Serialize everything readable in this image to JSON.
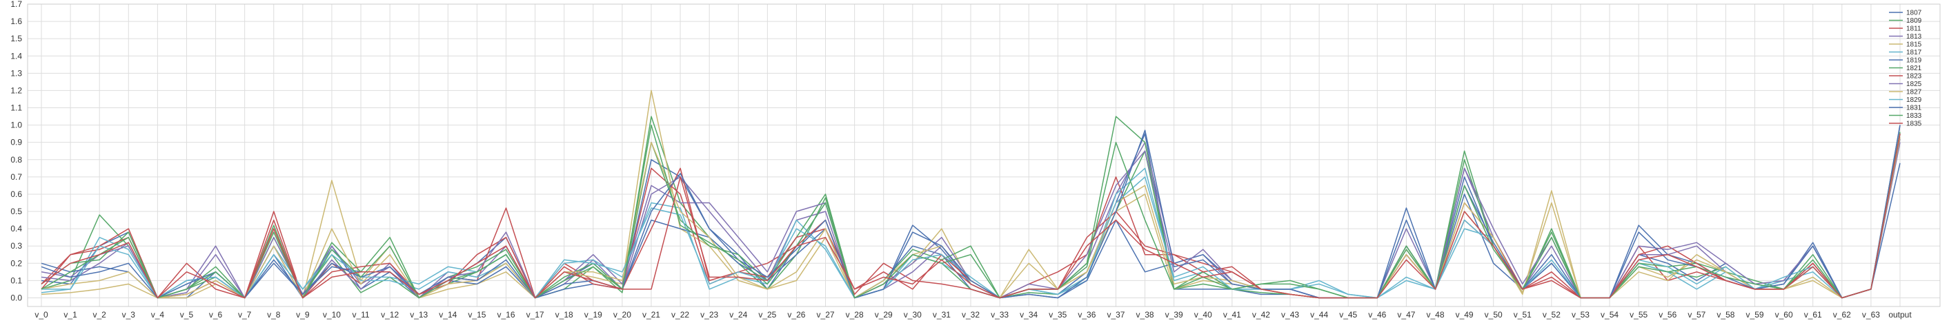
{
  "chart_data": {
    "type": "line",
    "title": "",
    "xlabel": "",
    "ylabel": "",
    "ylim": [
      -0.05,
      1.7
    ],
    "yticks": [
      "0.0",
      "0.1",
      "0.2",
      "0.3",
      "0.4",
      "0.5",
      "0.6",
      "0.7",
      "0.8",
      "0.9",
      "1.0",
      "1.1",
      "1.2",
      "1.3",
      "1.4",
      "1.5",
      "1.6",
      "1.7"
    ],
    "grid": true,
    "legend_position": "top-right",
    "categories": [
      "v_0",
      "v_1",
      "v_2",
      "v_3",
      "v_4",
      "v_5",
      "v_6",
      "v_7",
      "v_8",
      "v_9",
      "v_10",
      "v_11",
      "v_12",
      "v_13",
      "v_14",
      "v_15",
      "v_16",
      "v_17",
      "v_18",
      "v_19",
      "v_20",
      "v_21",
      "v_22",
      "v_23",
      "v_24",
      "v_25",
      "v_26",
      "v_27",
      "v_28",
      "v_29",
      "v_30",
      "v_31",
      "v_32",
      "v_33",
      "v_34",
      "v_35",
      "v_36",
      "v_37",
      "v_38",
      "v_39",
      "v_40",
      "v_41",
      "v_42",
      "v_43",
      "v_44",
      "v_45",
      "v_46",
      "v_47",
      "v_48",
      "v_49",
      "v_50",
      "v_51",
      "v_52",
      "v_53",
      "v_54",
      "v_55",
      "v_56",
      "v_57",
      "v_58",
      "v_59",
      "v_60",
      "v_61",
      "v_62",
      "v_63",
      "output"
    ],
    "series": [
      {
        "name": "1807",
        "color": "#4c72b0",
        "values": [
          0.1,
          0.08,
          0.3,
          0.38,
          0.0,
          0.0,
          0.15,
          0.0,
          0.25,
          0.0,
          0.3,
          0.05,
          0.15,
          0.0,
          0.1,
          0.2,
          0.35,
          0.0,
          0.1,
          0.2,
          0.05,
          0.8,
          0.7,
          0.4,
          0.25,
          0.05,
          0.3,
          0.55,
          0.0,
          0.1,
          0.3,
          0.25,
          0.05,
          0.0,
          0.05,
          0.02,
          0.15,
          0.55,
          0.95,
          0.05,
          0.05,
          0.05,
          0.02,
          0.02,
          0.0,
          0.0,
          0.0,
          0.25,
          0.05,
          0.6,
          0.2,
          0.05,
          0.2,
          0.0,
          0.0,
          0.25,
          0.2,
          0.1,
          0.2,
          0.08,
          0.05,
          0.2,
          0.0,
          0.05,
          1.0
        ]
      },
      {
        "name": "1809",
        "color": "#55a868",
        "values": [
          0.05,
          0.1,
          0.48,
          0.3,
          0.0,
          0.05,
          0.12,
          0.0,
          0.35,
          0.02,
          0.25,
          0.03,
          0.12,
          0.0,
          0.08,
          0.15,
          0.25,
          0.0,
          0.05,
          0.18,
          0.03,
          1.05,
          0.55,
          0.35,
          0.2,
          0.05,
          0.25,
          0.58,
          0.0,
          0.08,
          0.25,
          0.2,
          0.05,
          0.0,
          0.03,
          0.02,
          0.12,
          0.5,
          0.85,
          0.05,
          0.08,
          0.05,
          0.03,
          0.02,
          0.0,
          0.0,
          0.0,
          0.3,
          0.05,
          0.85,
          0.3,
          0.03,
          0.4,
          0.0,
          0.0,
          0.2,
          0.15,
          0.12,
          0.18,
          0.05,
          0.05,
          0.18,
          0.0,
          0.05,
          0.95
        ]
      },
      {
        "name": "1811",
        "color": "#c44e52",
        "values": [
          0.08,
          0.25,
          0.3,
          0.4,
          0.0,
          0.02,
          0.1,
          0.0,
          0.5,
          0.0,
          0.2,
          0.08,
          0.18,
          0.0,
          0.12,
          0.1,
          0.52,
          0.0,
          0.2,
          0.1,
          0.05,
          0.75,
          0.6,
          0.08,
          0.15,
          0.2,
          0.3,
          0.45,
          0.02,
          0.2,
          0.1,
          0.08,
          0.05,
          0.0,
          0.08,
          0.15,
          0.25,
          0.7,
          0.25,
          0.25,
          0.2,
          0.15,
          0.05,
          0.02,
          0.0,
          0.0,
          0.0,
          0.25,
          0.05,
          0.45,
          0.3,
          0.05,
          0.15,
          0.0,
          0.0,
          0.3,
          0.1,
          0.15,
          0.1,
          0.05,
          0.05,
          0.2,
          0.0,
          0.05,
          0.95
        ]
      },
      {
        "name": "1813",
        "color": "#8172b2",
        "values": [
          0.15,
          0.12,
          0.25,
          0.3,
          0.0,
          0.03,
          0.25,
          0.0,
          0.3,
          0.0,
          0.22,
          0.05,
          0.2,
          0.0,
          0.15,
          0.12,
          0.3,
          0.0,
          0.08,
          0.22,
          0.05,
          0.6,
          0.7,
          0.5,
          0.3,
          0.1,
          0.45,
          0.5,
          0.0,
          0.05,
          0.15,
          0.3,
          0.08,
          0.0,
          0.05,
          0.05,
          0.2,
          0.6,
          0.9,
          0.2,
          0.25,
          0.08,
          0.05,
          0.05,
          0.0,
          0.0,
          0.0,
          0.3,
          0.05,
          0.75,
          0.35,
          0.05,
          0.3,
          0.0,
          0.0,
          0.25,
          0.25,
          0.3,
          0.15,
          0.05,
          0.1,
          0.3,
          0.0,
          0.05,
          0.9
        ]
      },
      {
        "name": "1815",
        "color": "#ccb974",
        "values": [
          0.02,
          0.03,
          0.05,
          0.08,
          0.0,
          0.0,
          0.08,
          0.0,
          0.4,
          0.0,
          0.68,
          0.1,
          0.3,
          0.0,
          0.05,
          0.08,
          0.15,
          0.0,
          0.15,
          0.12,
          0.08,
          1.2,
          0.4,
          0.3,
          0.1,
          0.05,
          0.1,
          0.35,
          0.0,
          0.08,
          0.2,
          0.4,
          0.08,
          0.0,
          0.28,
          0.05,
          0.15,
          0.5,
          0.6,
          0.05,
          0.1,
          0.08,
          0.05,
          0.02,
          0.0,
          0.0,
          0.0,
          0.28,
          0.05,
          0.5,
          0.3,
          0.02,
          0.62,
          0.0,
          0.0,
          0.15,
          0.1,
          0.25,
          0.15,
          0.05,
          0.05,
          0.1,
          0.0,
          0.05,
          0.92
        ]
      },
      {
        "name": "1817",
        "color": "#64b5cd",
        "values": [
          0.03,
          0.05,
          0.35,
          0.28,
          0.0,
          0.08,
          0.15,
          0.0,
          0.3,
          0.05,
          0.28,
          0.1,
          0.1,
          0.05,
          0.15,
          0.12,
          0.2,
          0.0,
          0.2,
          0.22,
          0.12,
          0.55,
          0.52,
          0.05,
          0.12,
          0.08,
          0.45,
          0.28,
          0.0,
          0.05,
          0.25,
          0.2,
          0.1,
          0.0,
          0.05,
          0.02,
          0.1,
          0.6,
          0.75,
          0.1,
          0.15,
          0.05,
          0.05,
          0.05,
          0.1,
          0.02,
          0.0,
          0.1,
          0.05,
          0.4,
          0.35,
          0.05,
          0.2,
          0.0,
          0.0,
          0.2,
          0.15,
          0.05,
          0.15,
          0.05,
          0.1,
          0.15,
          0.0,
          0.05,
          0.95
        ]
      },
      {
        "name": "1819",
        "color": "#4c72b0",
        "values": [
          0.2,
          0.15,
          0.18,
          0.15,
          0.0,
          0.1,
          0.12,
          0.0,
          0.2,
          0.02,
          0.18,
          0.15,
          0.15,
          0.02,
          0.1,
          0.08,
          0.18,
          0.0,
          0.05,
          0.08,
          0.05,
          0.45,
          0.4,
          0.35,
          0.2,
          0.1,
          0.25,
          0.4,
          0.0,
          0.05,
          0.42,
          0.28,
          0.08,
          0.0,
          0.02,
          0.0,
          0.1,
          0.45,
          0.15,
          0.2,
          0.25,
          0.1,
          0.05,
          0.05,
          0.0,
          0.0,
          0.0,
          0.52,
          0.05,
          0.7,
          0.3,
          0.05,
          0.2,
          0.0,
          0.0,
          0.42,
          0.25,
          0.2,
          0.1,
          0.05,
          0.08,
          0.32,
          0.0,
          0.05,
          1.0
        ]
      },
      {
        "name": "1821",
        "color": "#55a868",
        "values": [
          0.08,
          0.2,
          0.22,
          0.38,
          0.0,
          0.05,
          0.18,
          0.0,
          0.42,
          0.0,
          0.32,
          0.15,
          0.35,
          0.0,
          0.12,
          0.18,
          0.28,
          0.0,
          0.12,
          0.2,
          0.05,
          0.9,
          0.45,
          0.3,
          0.25,
          0.1,
          0.35,
          0.6,
          0.0,
          0.1,
          0.28,
          0.22,
          0.3,
          0.0,
          0.05,
          0.05,
          0.2,
          1.05,
          0.9,
          0.05,
          0.15,
          0.05,
          0.08,
          0.1,
          0.05,
          0.0,
          0.0,
          0.3,
          0.05,
          0.8,
          0.3,
          0.05,
          0.38,
          0.0,
          0.0,
          0.2,
          0.18,
          0.2,
          0.15,
          0.1,
          0.05,
          0.25,
          0.0,
          0.05,
          0.96
        ]
      },
      {
        "name": "1823",
        "color": "#c44e52",
        "values": [
          0.05,
          0.25,
          0.28,
          0.35,
          0.0,
          0.2,
          0.05,
          0.0,
          0.45,
          0.0,
          0.15,
          0.18,
          0.2,
          0.02,
          0.08,
          0.25,
          0.35,
          0.0,
          0.18,
          0.08,
          0.05,
          0.4,
          0.75,
          0.1,
          0.15,
          0.12,
          0.35,
          0.4,
          0.05,
          0.15,
          0.05,
          0.25,
          0.1,
          0.0,
          0.05,
          0.05,
          0.35,
          0.5,
          0.3,
          0.25,
          0.15,
          0.18,
          0.05,
          0.02,
          0.0,
          0.0,
          0.0,
          0.25,
          0.05,
          0.55,
          0.35,
          0.05,
          0.1,
          0.0,
          0.0,
          0.25,
          0.3,
          0.2,
          0.1,
          0.05,
          0.05,
          0.2,
          0.0,
          0.05,
          0.95
        ]
      },
      {
        "name": "1825",
        "color": "#8172b2",
        "values": [
          0.12,
          0.1,
          0.2,
          0.32,
          0.0,
          0.05,
          0.3,
          0.0,
          0.35,
          0.02,
          0.3,
          0.08,
          0.18,
          0.0,
          0.12,
          0.15,
          0.38,
          0.0,
          0.1,
          0.25,
          0.08,
          0.65,
          0.55,
          0.55,
          0.35,
          0.15,
          0.5,
          0.55,
          0.0,
          0.08,
          0.2,
          0.35,
          0.1,
          0.0,
          0.08,
          0.05,
          0.25,
          0.65,
          0.85,
          0.15,
          0.28,
          0.1,
          0.05,
          0.05,
          0.0,
          0.0,
          0.0,
          0.4,
          0.05,
          0.75,
          0.4,
          0.08,
          0.35,
          0.0,
          0.0,
          0.3,
          0.28,
          0.32,
          0.2,
          0.08,
          0.1,
          0.3,
          0.0,
          0.05,
          0.92
        ]
      },
      {
        "name": "1827",
        "color": "#ccb974",
        "values": [
          0.05,
          0.08,
          0.1,
          0.15,
          0.0,
          0.02,
          0.1,
          0.0,
          0.3,
          0.0,
          0.4,
          0.08,
          0.25,
          0.0,
          0.08,
          0.1,
          0.2,
          0.0,
          0.15,
          0.15,
          0.1,
          0.9,
          0.5,
          0.35,
          0.12,
          0.05,
          0.15,
          0.4,
          0.0,
          0.1,
          0.25,
          0.3,
          0.1,
          0.0,
          0.2,
          0.05,
          0.15,
          0.55,
          0.65,
          0.08,
          0.12,
          0.1,
          0.05,
          0.02,
          0.0,
          0.0,
          0.0,
          0.25,
          0.05,
          0.55,
          0.35,
          0.03,
          0.55,
          0.0,
          0.0,
          0.18,
          0.12,
          0.22,
          0.15,
          0.05,
          0.05,
          0.12,
          0.0,
          0.05,
          0.93
        ]
      },
      {
        "name": "1829",
        "color": "#64b5cd",
        "values": [
          0.05,
          0.05,
          0.3,
          0.25,
          0.0,
          0.1,
          0.12,
          0.0,
          0.25,
          0.05,
          0.25,
          0.12,
          0.12,
          0.08,
          0.18,
          0.15,
          0.25,
          0.0,
          0.22,
          0.2,
          0.15,
          0.52,
          0.48,
          0.08,
          0.15,
          0.1,
          0.4,
          0.3,
          0.0,
          0.05,
          0.22,
          0.25,
          0.12,
          0.0,
          0.05,
          0.02,
          0.12,
          0.55,
          0.7,
          0.12,
          0.18,
          0.05,
          0.05,
          0.05,
          0.08,
          0.02,
          0.0,
          0.12,
          0.05,
          0.45,
          0.3,
          0.05,
          0.22,
          0.0,
          0.0,
          0.22,
          0.18,
          0.08,
          0.18,
          0.05,
          0.12,
          0.18,
          0.0,
          0.05,
          0.95
        ]
      },
      {
        "name": "1831",
        "color": "#4c72b0",
        "values": [
          0.18,
          0.12,
          0.15,
          0.2,
          0.0,
          0.08,
          0.15,
          0.0,
          0.22,
          0.02,
          0.2,
          0.12,
          0.18,
          0.02,
          0.12,
          0.1,
          0.22,
          0.0,
          0.08,
          0.1,
          0.05,
          0.5,
          0.72,
          0.4,
          0.22,
          0.12,
          0.28,
          0.45,
          0.0,
          0.05,
          0.38,
          0.3,
          0.1,
          0.0,
          0.02,
          0.0,
          0.12,
          0.5,
          0.97,
          0.18,
          0.22,
          0.08,
          0.05,
          0.05,
          0.0,
          0.0,
          0.0,
          0.45,
          0.05,
          0.65,
          0.32,
          0.05,
          0.25,
          0.0,
          0.0,
          0.38,
          0.22,
          0.18,
          0.12,
          0.05,
          0.08,
          0.3,
          0.0,
          0.05,
          0.78
        ]
      },
      {
        "name": "1833",
        "color": "#55a868",
        "values": [
          0.05,
          0.15,
          0.25,
          0.35,
          0.0,
          0.05,
          0.15,
          0.0,
          0.38,
          0.0,
          0.28,
          0.12,
          0.3,
          0.0,
          0.1,
          0.15,
          0.25,
          0.0,
          0.1,
          0.18,
          0.05,
          1.0,
          0.42,
          0.32,
          0.22,
          0.08,
          0.3,
          0.55,
          0.0,
          0.08,
          0.25,
          0.2,
          0.25,
          0.0,
          0.05,
          0.05,
          0.18,
          0.9,
          0.45,
          0.05,
          0.12,
          0.05,
          0.08,
          0.08,
          0.05,
          0.0,
          0.0,
          0.28,
          0.05,
          0.65,
          0.28,
          0.05,
          0.35,
          0.0,
          0.0,
          0.18,
          0.15,
          0.18,
          0.12,
          0.08,
          0.05,
          0.22,
          0.0,
          0.05,
          0.95
        ]
      },
      {
        "name": "1835",
        "color": "#c44e52",
        "values": [
          0.08,
          0.2,
          0.25,
          0.32,
          0.0,
          0.15,
          0.08,
          0.0,
          0.4,
          0.0,
          0.12,
          0.15,
          0.15,
          0.02,
          0.1,
          0.2,
          0.3,
          0.0,
          0.15,
          0.1,
          0.05,
          0.05,
          0.7,
          0.12,
          0.12,
          0.1,
          0.3,
          0.35,
          0.05,
          0.12,
          0.08,
          0.22,
          0.08,
          0.0,
          0.05,
          0.05,
          0.3,
          0.45,
          0.28,
          0.2,
          0.12,
          0.15,
          0.05,
          0.02,
          0.0,
          0.0,
          0.0,
          0.22,
          0.05,
          0.5,
          0.3,
          0.05,
          0.12,
          0.0,
          0.0,
          0.22,
          0.25,
          0.18,
          0.1,
          0.05,
          0.05,
          0.18,
          0.0,
          0.05,
          0.95
        ]
      }
    ]
  }
}
